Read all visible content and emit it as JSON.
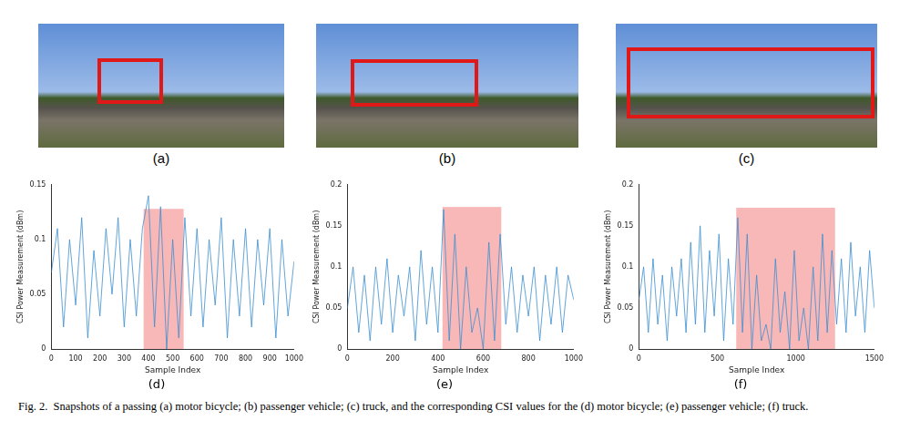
{
  "images": [
    {
      "label": "(a)"
    },
    {
      "label": "(b)"
    },
    {
      "label": "(c)"
    }
  ],
  "chart_data": [
    {
      "type": "line",
      "title": "(d)",
      "x_label": "Sample Index",
      "y_label": "CSI Power Measurement (dBm)",
      "x": [
        0,
        25,
        50,
        75,
        100,
        125,
        150,
        175,
        200,
        225,
        250,
        275,
        300,
        325,
        350,
        375,
        400,
        425,
        450,
        475,
        500,
        525,
        550,
        575,
        600,
        625,
        650,
        675,
        700,
        725,
        750,
        775,
        800,
        825,
        850,
        875,
        900,
        925,
        950,
        975,
        1000
      ],
      "values": [
        0.07,
        0.11,
        0.02,
        0.1,
        0.04,
        0.12,
        0.01,
        0.09,
        0.03,
        0.11,
        0.05,
        0.12,
        0.02,
        0.1,
        0.03,
        0.11,
        0.14,
        0.02,
        0.13,
        0.0,
        0.1,
        0.01,
        0.12,
        0.03,
        0.11,
        0.02,
        0.1,
        0.04,
        0.12,
        0.01,
        0.1,
        0.03,
        0.11,
        0.02,
        0.1,
        0.04,
        0.11,
        0.01,
        0.1,
        0.03,
        0.08
      ],
      "color": "#3b8ed0",
      "xlim": [
        0,
        1000
      ],
      "xticks": [
        0,
        100,
        200,
        300,
        400,
        500,
        600,
        700,
        800,
        900,
        1000
      ],
      "ylim": [
        0,
        0.15
      ],
      "yticks": [
        0,
        0.05,
        0.1,
        0.15
      ],
      "grid": false,
      "highlight": {
        "x": [
          380,
          545
        ],
        "y": [
          0,
          0.128
        ],
        "color": "#f59a9a"
      }
    },
    {
      "type": "line",
      "title": "(e)",
      "x_label": "Sample Index",
      "y_label": "CSI Power Measurement (dBm)",
      "x": [
        0,
        25,
        50,
        75,
        100,
        125,
        150,
        175,
        200,
        225,
        250,
        275,
        300,
        325,
        350,
        375,
        400,
        425,
        450,
        475,
        500,
        525,
        550,
        575,
        600,
        625,
        650,
        675,
        700,
        725,
        750,
        775,
        800,
        825,
        850,
        875,
        900,
        925,
        950,
        975,
        1000
      ],
      "values": [
        0.05,
        0.1,
        0.02,
        0.09,
        0.01,
        0.1,
        0.03,
        0.11,
        0.02,
        0.09,
        0.04,
        0.1,
        0.01,
        0.12,
        0.03,
        0.1,
        0.02,
        0.17,
        0.01,
        0.14,
        0.0,
        0.1,
        0.02,
        0.05,
        0.0,
        0.13,
        0.01,
        0.14,
        0.03,
        0.1,
        0.02,
        0.09,
        0.04,
        0.1,
        0.01,
        0.09,
        0.03,
        0.1,
        0.02,
        0.09,
        0.06
      ],
      "color": "#3b8ed0",
      "xlim": [
        0,
        1000
      ],
      "xticks": [
        0,
        200,
        400,
        600,
        800,
        1000
      ],
      "ylim": [
        0,
        0.2
      ],
      "yticks": [
        0,
        0.05,
        0.1,
        0.15,
        0.2
      ],
      "grid": false,
      "highlight": {
        "x": [
          420,
          680
        ],
        "y": [
          0,
          0.173
        ],
        "color": "#f59a9a"
      }
    },
    {
      "type": "line",
      "title": "(f)",
      "x_label": "Sample Index",
      "y_label": "CSI Power Measurement (dBm)",
      "x": [
        0,
        30,
        60,
        90,
        120,
        150,
        180,
        210,
        240,
        270,
        300,
        330,
        360,
        390,
        420,
        450,
        480,
        510,
        540,
        570,
        600,
        630,
        660,
        690,
        720,
        750,
        780,
        810,
        840,
        870,
        900,
        930,
        960,
        990,
        1020,
        1050,
        1080,
        1110,
        1140,
        1170,
        1200,
        1230,
        1260,
        1290,
        1320,
        1350,
        1380,
        1410,
        1440,
        1470,
        1500
      ],
      "values": [
        0.06,
        0.1,
        0.02,
        0.11,
        0.03,
        0.09,
        0.01,
        0.1,
        0.04,
        0.11,
        0.02,
        0.13,
        0.03,
        0.15,
        0.02,
        0.12,
        0.04,
        0.14,
        0.01,
        0.11,
        0.03,
        0.16,
        0.02,
        0.14,
        0.0,
        0.09,
        0.01,
        0.03,
        0.0,
        0.11,
        0.02,
        0.07,
        0.0,
        0.12,
        0.01,
        0.05,
        0.0,
        0.1,
        0.01,
        0.14,
        0.02,
        0.12,
        0.03,
        0.11,
        0.02,
        0.13,
        0.04,
        0.1,
        0.02,
        0.12,
        0.05
      ],
      "color": "#3b8ed0",
      "xlim": [
        0,
        1500
      ],
      "xticks": [
        0,
        500,
        1000,
        1500
      ],
      "ylim": [
        0,
        0.2
      ],
      "yticks": [
        0,
        0.05,
        0.1,
        0.15,
        0.2
      ],
      "grid": false,
      "highlight": {
        "x": [
          620,
          1250
        ],
        "y": [
          0,
          0.172
        ],
        "color": "#f59a9a"
      }
    }
  ],
  "caption": "Fig. 2.  Snapshots of a passing (a) motor bicycle; (b) passenger vehicle; (c) truck, and the corresponding CSI values for the (d) motor bicycle; (e) passenger vehicle; (f) truck."
}
